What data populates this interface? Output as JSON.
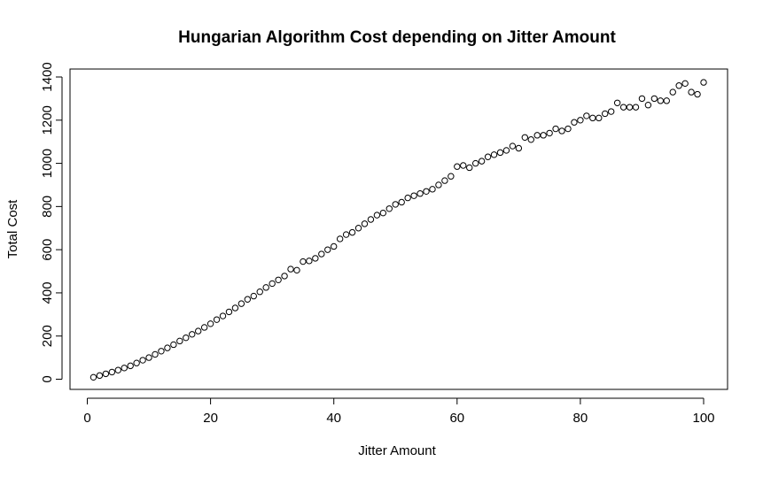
{
  "chart_data": {
    "type": "scatter",
    "title": "Hungarian Algorithm Cost depending on Jitter Amount",
    "xlabel": "Jitter Amount",
    "ylabel": "Total Cost",
    "xlim": [
      1,
      100
    ],
    "ylim": [
      9,
      1375
    ],
    "x_ticks": [
      0,
      20,
      40,
      60,
      80,
      100
    ],
    "y_ticks": [
      0,
      200,
      400,
      600,
      800,
      1000,
      1200,
      1400
    ],
    "grid": false,
    "legend": null,
    "marker": "open-circle",
    "x": [
      1,
      2,
      3,
      4,
      5,
      6,
      7,
      8,
      9,
      10,
      11,
      12,
      13,
      14,
      15,
      16,
      17,
      18,
      19,
      20,
      21,
      22,
      23,
      24,
      25,
      26,
      27,
      28,
      29,
      30,
      31,
      32,
      33,
      34,
      35,
      36,
      37,
      38,
      39,
      40,
      41,
      42,
      43,
      44,
      45,
      46,
      47,
      48,
      49,
      50,
      51,
      52,
      53,
      54,
      55,
      56,
      57,
      58,
      59,
      60,
      61,
      62,
      63,
      64,
      65,
      66,
      67,
      68,
      69,
      70,
      71,
      72,
      73,
      74,
      75,
      76,
      77,
      78,
      79,
      80,
      81,
      82,
      83,
      84,
      85,
      86,
      87,
      88,
      89,
      90,
      91,
      92,
      93,
      94,
      95,
      96,
      97,
      98,
      99,
      100
    ],
    "y": [
      9,
      17,
      25,
      33,
      42,
      52,
      62,
      75,
      88,
      100,
      115,
      130,
      145,
      160,
      177,
      192,
      208,
      223,
      240,
      257,
      276,
      293,
      312,
      330,
      350,
      370,
      385,
      405,
      425,
      443,
      460,
      478,
      510,
      505,
      545,
      548,
      560,
      580,
      600,
      615,
      650,
      670,
      680,
      700,
      720,
      740,
      760,
      770,
      790,
      810,
      820,
      840,
      850,
      860,
      870,
      880,
      900,
      920,
      940,
      985,
      990,
      980,
      1000,
      1010,
      1030,
      1040,
      1050,
      1060,
      1080,
      1070,
      1120,
      1110,
      1130,
      1130,
      1140,
      1160,
      1150,
      1160,
      1190,
      1200,
      1220,
      1210,
      1210,
      1230,
      1240,
      1280,
      1260,
      1260,
      1260,
      1300,
      1270,
      1300,
      1290,
      1290,
      1330,
      1360,
      1370,
      1330,
      1320,
      1375
    ]
  }
}
